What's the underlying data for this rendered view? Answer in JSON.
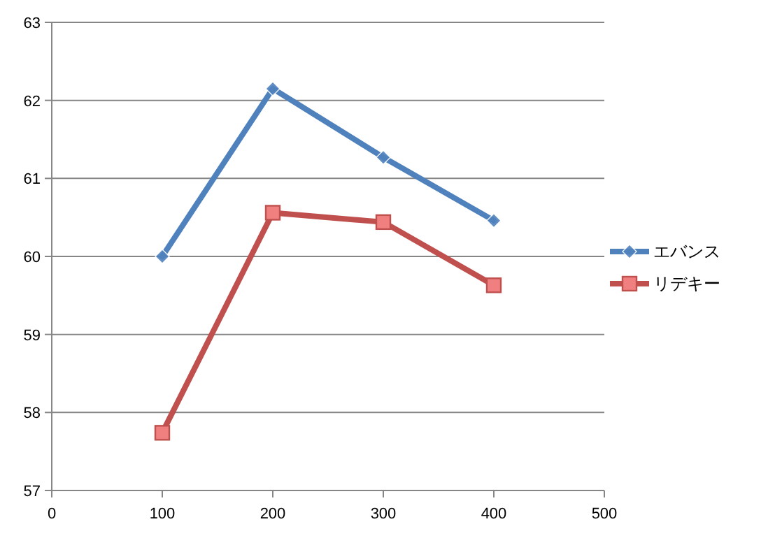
{
  "chart_data": {
    "type": "line",
    "x": [
      100,
      200,
      300,
      400
    ],
    "xlim": [
      0,
      500
    ],
    "xticks": [
      0,
      100,
      200,
      300,
      400,
      500
    ],
    "ylim": [
      57,
      63
    ],
    "yticks": [
      57,
      58,
      59,
      60,
      61,
      62,
      63
    ],
    "grid": "y",
    "legend": "right",
    "line_style": "solid",
    "series": [
      {
        "name": "エバンス",
        "color": "#4f81bd",
        "marker": "diamond",
        "values": [
          60.0,
          62.15,
          61.27,
          60.46
        ]
      },
      {
        "name": "リデキー",
        "color": "#c0504d",
        "marker": "square",
        "values": [
          57.74,
          60.56,
          60.44,
          59.63
        ]
      }
    ]
  }
}
